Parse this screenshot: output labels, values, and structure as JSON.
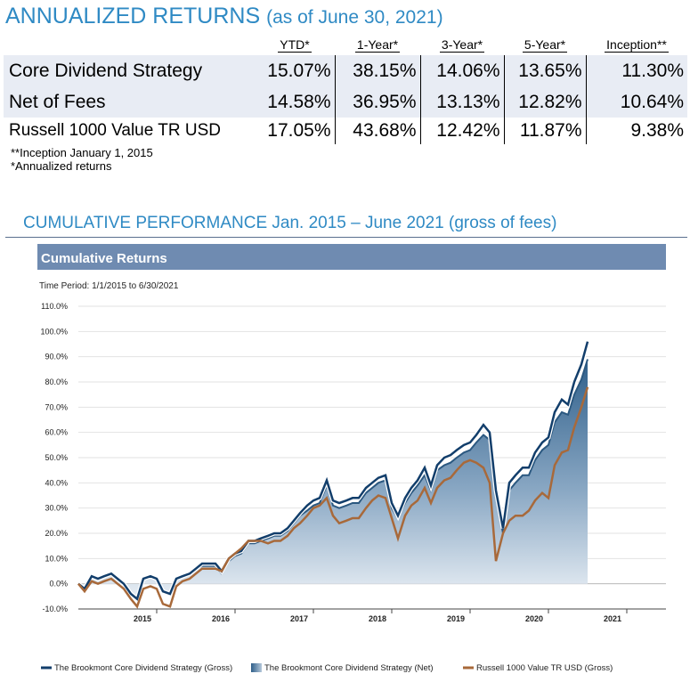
{
  "header": {
    "title": "ANNUALIZED RETURNS",
    "subtitle": "(as of June 30, 2021)"
  },
  "table": {
    "columns": [
      "YTD*",
      "1-Year*",
      "3-Year*",
      "5-Year*",
      "Inception**"
    ],
    "rows": [
      {
        "label": "Core Dividend Strategy",
        "values": [
          "15.07%",
          "38.15%",
          "14.06%",
          "13.65%",
          "11.30%"
        ]
      },
      {
        "label": "Net of Fees",
        "values": [
          "14.58%",
          "36.95%",
          "13.13%",
          "12.82%",
          "10.64%"
        ]
      },
      {
        "label": "Russell 1000 Value TR USD",
        "values": [
          "17.05%",
          "43.68%",
          "12.42%",
          "11.87%",
          "9.38%"
        ]
      }
    ]
  },
  "notes": [
    "**Inception January 1, 2015",
    "*Annualized returns"
  ],
  "section_title": "CUMULATIVE PERFORMANCE Jan. 2015 – June 2021 (gross of fees)",
  "colors": {
    "gross": "#123e6b",
    "net_fill": "#3c6e95",
    "benchmark": "#a8693a",
    "banner": "#6f8bb1"
  },
  "chart_data": {
    "type": "line",
    "title": "Cumulative Returns",
    "subtitle": "Time Period: 1/1/2015 to 6/30/2021",
    "ylim": [
      -10,
      110
    ],
    "yticks": [
      -10,
      0,
      10,
      20,
      30,
      40,
      50,
      60,
      70,
      80,
      90,
      100,
      110
    ],
    "ytick_labels": [
      "-10.0%",
      "0.0%",
      "10.0%",
      "20.0%",
      "30.0%",
      "40.0%",
      "50.0%",
      "60.0%",
      "70.0%",
      "80.0%",
      "90.0%",
      "100.0%",
      "110.0%"
    ],
    "xlim": [
      2014.0,
      2021.5
    ],
    "xticks": [
      2015,
      2016,
      2017,
      2018,
      2019,
      2020,
      2021
    ],
    "xtick_labels": [
      "2015",
      "2016",
      "2017",
      "2018",
      "2019",
      "2020",
      "2021"
    ],
    "x": [
      2014.0,
      2014.08,
      2014.17,
      2014.25,
      2014.33,
      2014.42,
      2014.5,
      2014.58,
      2014.67,
      2014.75,
      2014.83,
      2014.92,
      2015.0,
      2015.08,
      2015.17,
      2015.25,
      2015.33,
      2015.42,
      2015.5,
      2015.58,
      2015.67,
      2015.75,
      2015.83,
      2015.92,
      2016.0,
      2016.08,
      2016.17,
      2016.25,
      2016.33,
      2016.42,
      2016.5,
      2016.58,
      2016.67,
      2016.75,
      2016.83,
      2016.92,
      2017.0,
      2017.08,
      2017.17,
      2017.25,
      2017.33,
      2017.42,
      2017.5,
      2017.58,
      2017.67,
      2017.75,
      2017.83,
      2017.92,
      2018.0,
      2018.08,
      2018.17,
      2018.25,
      2018.33,
      2018.42,
      2018.5,
      2018.58,
      2018.67,
      2018.75,
      2018.83,
      2018.92,
      2019.0,
      2019.08,
      2019.17,
      2019.25,
      2019.33,
      2019.42,
      2019.5,
      2019.58,
      2019.67,
      2019.75,
      2019.83,
      2019.92,
      2020.0,
      2020.08,
      2020.17,
      2020.25,
      2020.33,
      2020.42,
      2020.5
    ],
    "series": [
      {
        "name": "The Brookmont Core Dividend Strategy (Gross)",
        "style": "line",
        "values": [
          0,
          -2,
          3,
          2,
          3,
          4,
          2,
          0,
          -4,
          -6,
          2,
          3,
          2,
          -3,
          -4,
          2,
          3,
          4,
          6,
          8,
          8,
          8,
          5,
          10,
          12,
          13,
          17,
          17,
          18,
          19,
          20,
          20,
          22,
          25,
          28,
          31,
          33,
          34,
          41,
          33,
          32,
          33,
          34,
          34,
          38,
          40,
          42,
          43,
          32,
          27,
          34,
          38,
          41,
          46,
          39,
          47,
          50,
          51,
          53,
          55,
          56,
          59,
          63,
          60,
          37,
          22,
          40,
          43,
          46,
          46,
          52,
          56,
          58,
          68,
          73,
          71,
          80,
          87,
          96
        ]
      },
      {
        "name": "The Brookmont Core Dividend Strategy (Net)",
        "style": "area",
        "values": [
          0,
          -2,
          3,
          2,
          3,
          4,
          2,
          0,
          -4,
          -6,
          2,
          3,
          2,
          -3,
          -4,
          2,
          3,
          4,
          6,
          7,
          7,
          7,
          4,
          9,
          11,
          12,
          16,
          16,
          17,
          18,
          19,
          19,
          21,
          24,
          27,
          29,
          31,
          32,
          39,
          31,
          30,
          31,
          32,
          32,
          36,
          38,
          40,
          41,
          30,
          26,
          32,
          36,
          39,
          43,
          37,
          45,
          47,
          48,
          50,
          52,
          53,
          56,
          59,
          57,
          35,
          20,
          37,
          40,
          43,
          43,
          49,
          53,
          55,
          64,
          68,
          67,
          75,
          81,
          89
        ]
      },
      {
        "name": "Russell 1000 Value TR USD (Gross)",
        "style": "line",
        "values": [
          0,
          -3,
          1,
          0,
          1,
          2,
          0,
          -2,
          -6,
          -9,
          -2,
          -1,
          -2,
          -8,
          -9,
          -1,
          1,
          2,
          4,
          6,
          6,
          6,
          5,
          10,
          12,
          14,
          17,
          17,
          17,
          16,
          17,
          17,
          19,
          22,
          24,
          27,
          30,
          31,
          34,
          27,
          24,
          25,
          26,
          26,
          30,
          33,
          35,
          34,
          26,
          18,
          27,
          31,
          33,
          38,
          32,
          38,
          41,
          42,
          45,
          48,
          49,
          48,
          46,
          40,
          9,
          20,
          25,
          27,
          27,
          29,
          33,
          36,
          34,
          47,
          52,
          53,
          62,
          70,
          78
        ]
      }
    ],
    "legend": "bottom"
  }
}
